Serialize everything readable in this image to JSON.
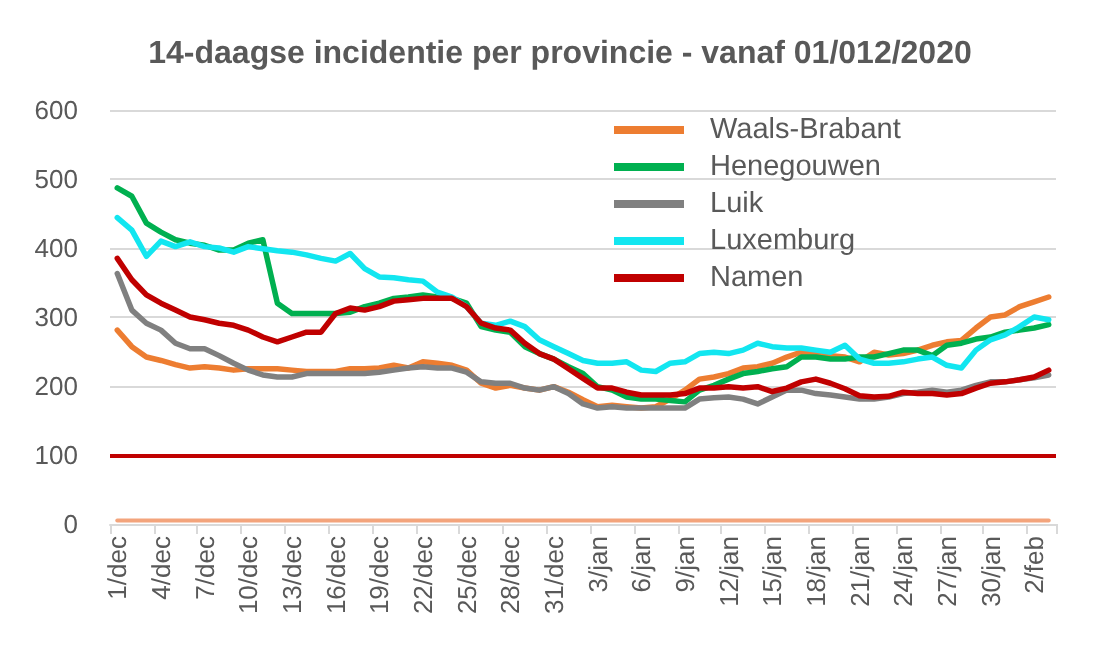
{
  "chart_data": {
    "type": "line",
    "title": "14-daagse incidentie per provincie - vanaf 01/012/2020",
    "categories": [
      "1/dec",
      null,
      null,
      "4/dec",
      null,
      null,
      "7/dec",
      null,
      null,
      "10/dec",
      null,
      null,
      "13/dec",
      null,
      null,
      "16/dec",
      null,
      null,
      "19/dec",
      null,
      null,
      "22/dec",
      null,
      null,
      "25/dec",
      null,
      null,
      "28/dec",
      null,
      null,
      "31/dec",
      null,
      null,
      "3/jan",
      null,
      null,
      "6/jan",
      null,
      null,
      "9/jan",
      null,
      null,
      "12/jan",
      null,
      null,
      "15/jan",
      null,
      null,
      "18/jan",
      null,
      null,
      "21/jan",
      null,
      null,
      "24/jan",
      null,
      null,
      "27/jan",
      null,
      null,
      "30/jan",
      null,
      null,
      "2/feb",
      null
    ],
    "series": [
      {
        "name": "Waals-Brabant",
        "color": "#ed7d31",
        "values": [
          281,
          257,
          242,
          237,
          231,
          226,
          228,
          226,
          223,
          225,
          225,
          225,
          223,
          221,
          221,
          221,
          225,
          225,
          226,
          230,
          226,
          235,
          233,
          230,
          223,
          204,
          197,
          201,
          197,
          194,
          199,
          191,
          180,
          170,
          172,
          170,
          168,
          170,
          181,
          194,
          210,
          213,
          218,
          226,
          228,
          233,
          242,
          249,
          249,
          244,
          242,
          235,
          249,
          245,
          247,
          252,
          259,
          264,
          266,
          284,
          300,
          303,
          315,
          322,
          329
        ]
      },
      {
        "name": "Henegouwen",
        "color": "#00b050",
        "values": [
          487,
          475,
          436,
          423,
          412,
          407,
          404,
          397,
          397,
          407,
          412,
          320,
          305,
          305,
          305,
          305,
          307,
          315,
          320,
          327,
          329,
          332,
          329,
          327,
          320,
          286,
          281,
          278,
          257,
          247,
          239,
          228,
          218,
          199,
          194,
          184,
          181,
          181,
          179,
          177,
          194,
          201,
          210,
          218,
          221,
          225,
          228,
          242,
          242,
          239,
          239,
          242,
          242,
          247,
          252,
          252,
          244,
          259,
          262,
          268,
          271,
          278,
          281,
          284,
          289
        ]
      },
      {
        "name": "Luik",
        "color": "#808080",
        "values": [
          363,
          310,
          291,
          281,
          262,
          254,
          254,
          244,
          233,
          223,
          216,
          213,
          213,
          218,
          218,
          218,
          218,
          218,
          220,
          223,
          226,
          228,
          226,
          226,
          220,
          206,
          204,
          204,
          197,
          194,
          199,
          189,
          174,
          168,
          170,
          168,
          168,
          168,
          168,
          168,
          181,
          183,
          184,
          181,
          174,
          184,
          194,
          194,
          189,
          187,
          184,
          181,
          181,
          184,
          189,
          191,
          194,
          191,
          194,
          201,
          206,
          206,
          209,
          212,
          216
        ]
      },
      {
        "name": "Luxemburg",
        "color": "#12e6f0",
        "values": [
          444,
          426,
          388,
          410,
          402,
          409,
          402,
          400,
          394,
          402,
          399,
          396,
          394,
          390,
          385,
          381,
          392,
          370,
          358,
          357,
          354,
          352,
          336,
          329,
          315,
          291,
          288,
          294,
          286,
          267,
          257,
          247,
          237,
          233,
          233,
          235,
          223,
          221,
          233,
          235,
          247,
          249,
          247,
          252,
          262,
          257,
          255,
          255,
          252,
          249,
          259,
          239,
          233,
          233,
          235,
          239,
          242,
          230,
          226,
          252,
          267,
          274,
          286,
          300,
          296
        ]
      },
      {
        "name": "Namen",
        "color": "#c00000",
        "values": [
          385,
          354,
          332,
          320,
          310,
          300,
          296,
          291,
          288,
          281,
          271,
          264,
          271,
          278,
          278,
          305,
          313,
          310,
          315,
          323,
          325,
          327,
          327,
          327,
          315,
          291,
          284,
          281,
          262,
          247,
          239,
          225,
          211,
          197,
          197,
          191,
          187,
          187,
          187,
          189,
          197,
          197,
          199,
          197,
          199,
          192,
          197,
          206,
          210,
          204,
          196,
          186,
          184,
          185,
          191,
          189,
          189,
          187,
          189,
          197,
          204,
          206,
          209,
          213,
          223
        ]
      },
      {
        "color": "#f3a47c",
        "values": [
          5,
          5,
          5,
          5,
          5,
          5,
          5,
          5,
          5,
          5,
          5,
          5,
          5,
          5,
          5,
          5,
          5,
          5,
          5,
          5,
          5,
          5,
          5,
          5,
          5,
          5,
          5,
          5,
          5,
          5,
          5,
          5,
          5,
          5,
          5,
          5,
          5,
          5,
          5,
          5,
          5,
          5,
          5,
          5,
          5,
          5,
          5,
          5,
          5,
          5,
          5,
          5,
          5,
          5,
          5,
          5,
          5,
          5,
          5,
          5,
          5,
          5,
          5,
          5,
          5
        ]
      }
    ],
    "ylim": [
      0,
      600
    ],
    "yticks": [
      0,
      100,
      200,
      300,
      400,
      500,
      600
    ],
    "grid": "y",
    "legend": "top right",
    "ref_lines": [
      {
        "axis": "y",
        "value": 100,
        "color": "#c00000"
      }
    ]
  }
}
